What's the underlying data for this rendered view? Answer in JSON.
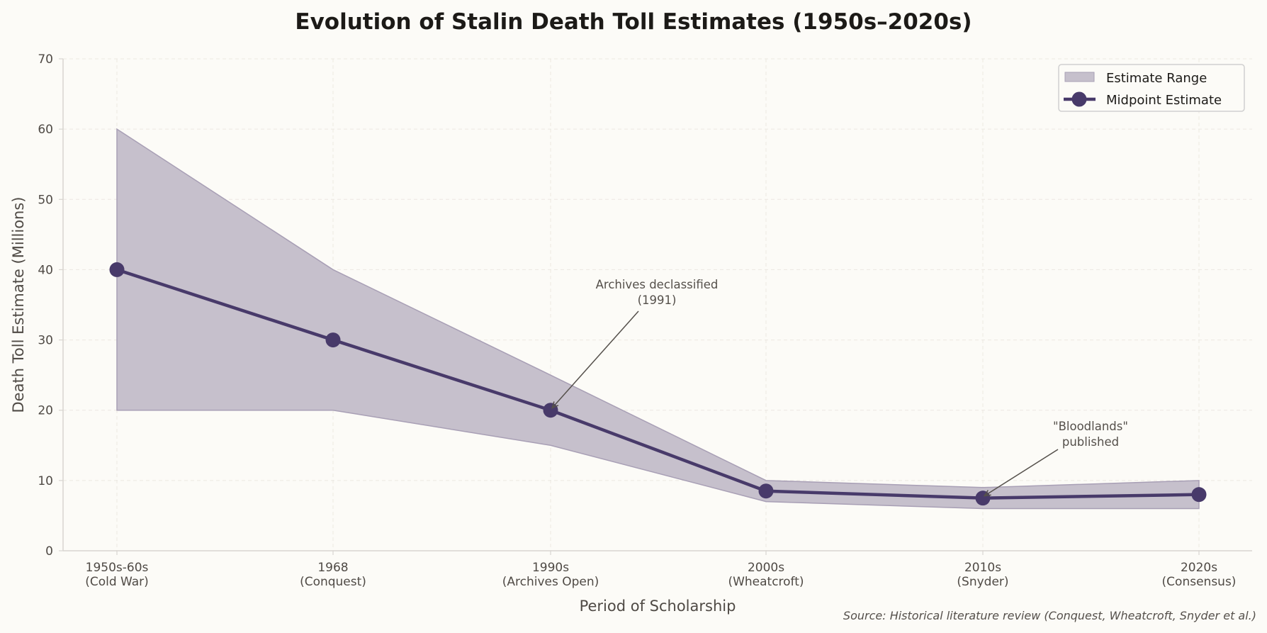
{
  "chart_data": {
    "type": "area",
    "title": "Evolution of Stalin Death Toll Estimates (1950s–2020s)",
    "xlabel": "Period of Scholarship",
    "ylabel": "Death Toll Estimate (Millions)",
    "ylim": [
      0,
      70
    ],
    "yticks": [
      "0",
      "10",
      "20",
      "30",
      "40",
      "50",
      "60",
      "70"
    ],
    "categories": [
      "1950s-60s\n(Cold War)",
      "1968\n(Conquest)",
      "1990s\n(Archives Open)",
      "2000s\n(Wheatcroft)",
      "2010s\n(Snyder)",
      "2020s\n(Consensus)"
    ],
    "grid": true,
    "legend_position": "top-right",
    "series": [
      {
        "name": "Estimate Range",
        "kind": "range",
        "low": [
          20,
          20,
          15,
          7,
          6,
          6
        ],
        "high": [
          60,
          40,
          25,
          10,
          9,
          10
        ],
        "color": "#c6c0cc"
      },
      {
        "name": "Midpoint Estimate",
        "kind": "line",
        "values": [
          40,
          30,
          20,
          8.5,
          7.5,
          8
        ],
        "color": "#483a6a"
      }
    ],
    "annotations": [
      {
        "text": "Archives declassified\n(1991)",
        "category_index": 2,
        "value": 20
      },
      {
        "text": "\"Bloodlands\"\npublished",
        "category_index": 4,
        "value": 7.5
      }
    ],
    "source": "Source: Historical literature review (Conquest, Wheatcroft, Snyder et al.)"
  }
}
